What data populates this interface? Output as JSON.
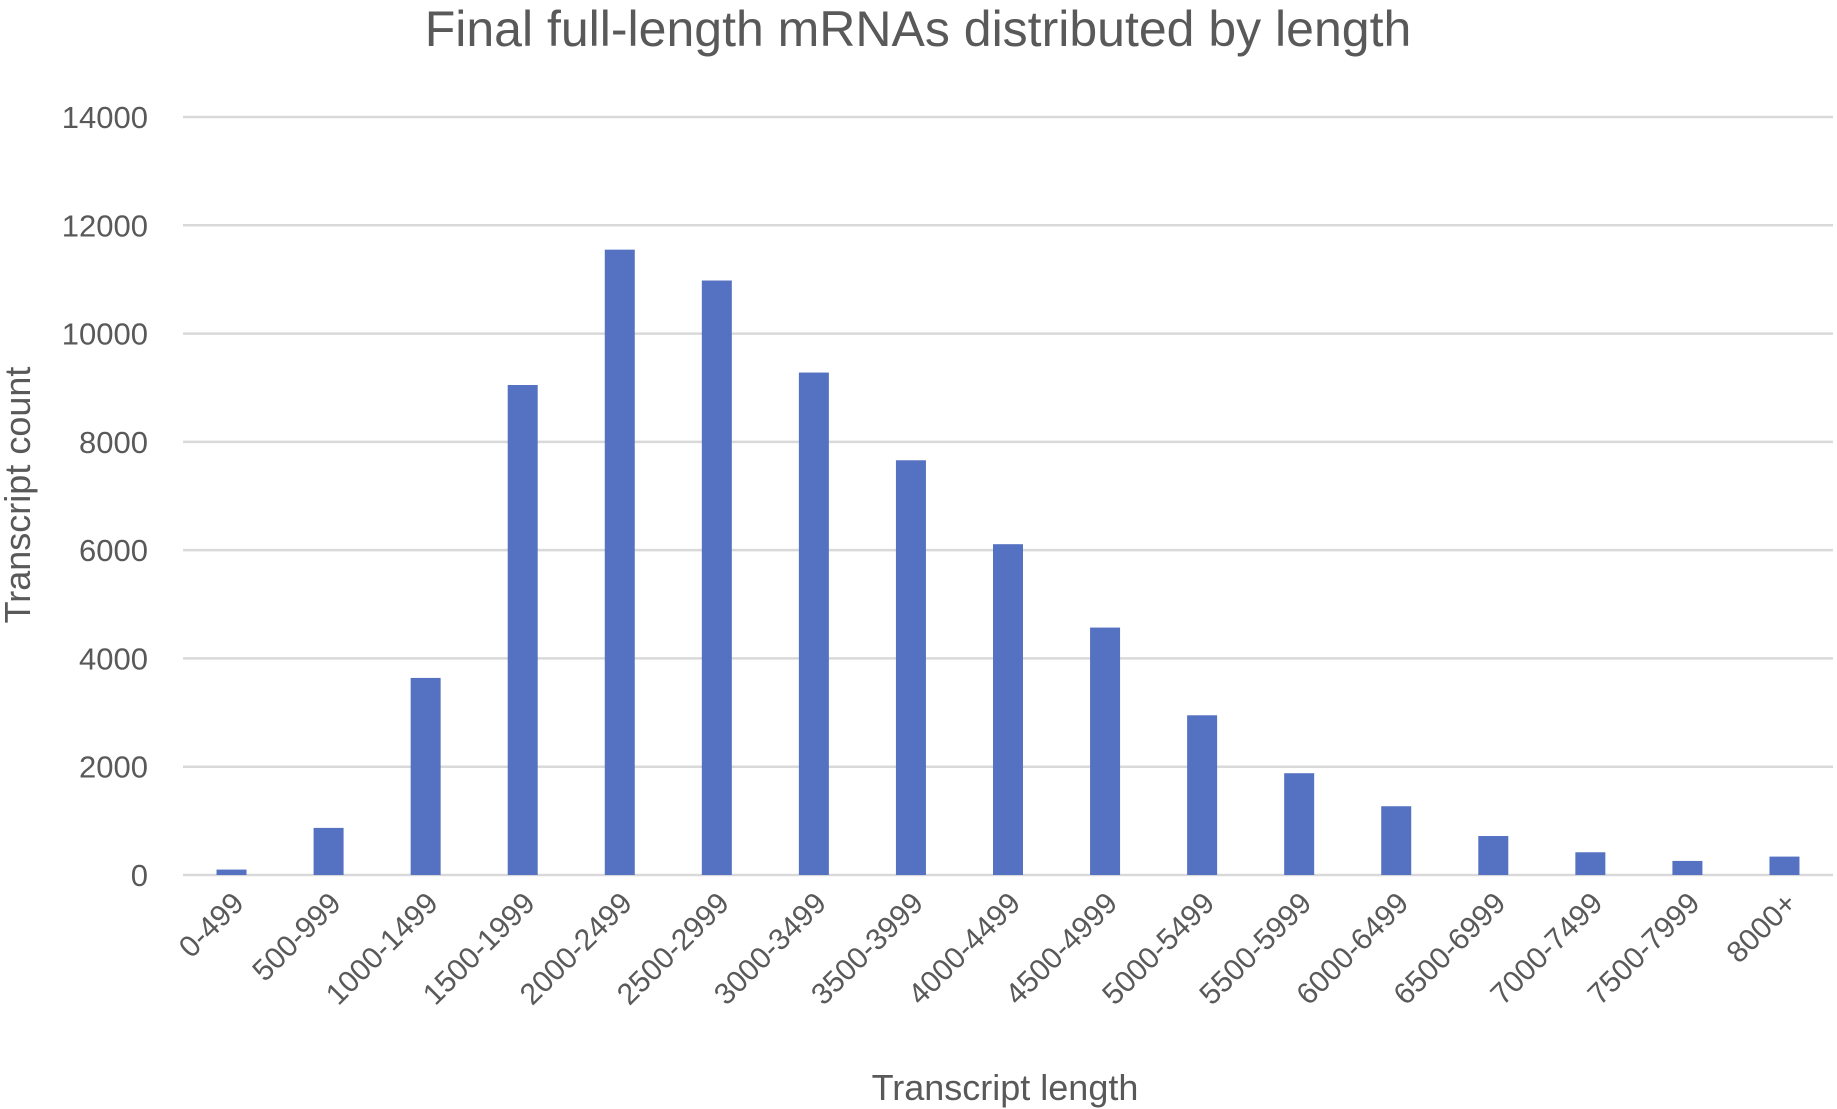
{
  "chart_data": {
    "type": "bar",
    "title": "Final full-length mRNAs distributed by length",
    "xlabel": "Transcript length",
    "ylabel": "Transcript count",
    "categories": [
      "0-499",
      "500-999",
      "1000-1499",
      "1500-1999",
      "2000-2499",
      "2500-2999",
      "3000-3499",
      "3500-3999",
      "4000-4499",
      "4500-4999",
      "5000-5499",
      "5500-5999",
      "6000-6499",
      "6500-6999",
      "7000-7499",
      "7500-7999",
      "8000+"
    ],
    "values": [
      100,
      870,
      3640,
      9050,
      11550,
      10980,
      9280,
      7660,
      6110,
      4570,
      2950,
      1880,
      1270,
      720,
      420,
      260,
      340
    ],
    "ylim": [
      0,
      14000
    ],
    "yticks": [
      0,
      2000,
      4000,
      6000,
      8000,
      10000,
      12000,
      14000
    ],
    "grid": true,
    "legend": "none",
    "bar_color": "#5572c2"
  }
}
